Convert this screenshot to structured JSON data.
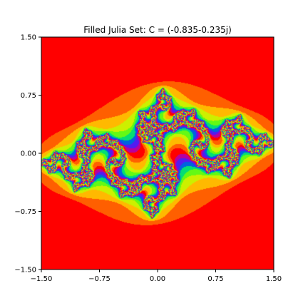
{
  "chart_data": {
    "type": "heatmap",
    "title": "Filled Julia Set: C = (-0.835-0.235j)",
    "xlabel": "",
    "ylabel": "",
    "c": {
      "re": -0.835,
      "im": -0.235
    },
    "xlim": [
      -1.5,
      1.5
    ],
    "ylim": [
      -1.5,
      1.5
    ],
    "x_ticks": [
      "−1.50",
      "−0.75",
      "0.00",
      "0.75",
      "1.50"
    ],
    "y_ticks": [
      "1.50",
      "0.75",
      "0.00",
      "−0.75",
      "−1.50"
    ],
    "x_tick_values": [
      -1.5,
      -0.75,
      0.0,
      0.75,
      1.5
    ],
    "y_tick_values": [
      1.5,
      0.75,
      0.0,
      -0.75,
      -1.5
    ],
    "max_iterations": 30,
    "colormap": "prism-like",
    "grid": false,
    "legend": false,
    "colors": {
      "background": "#ff0000",
      "axis": "#000000"
    }
  }
}
